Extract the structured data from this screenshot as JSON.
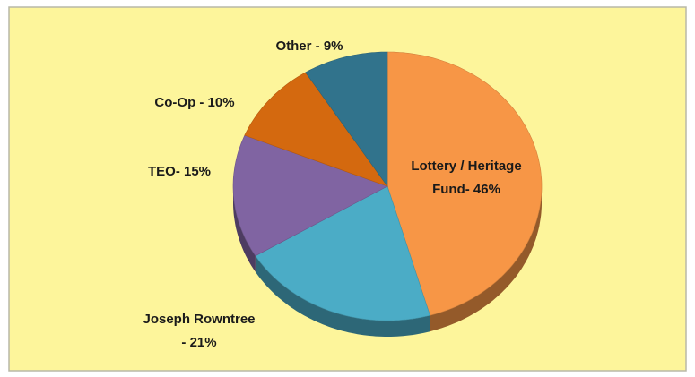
{
  "chart_data": {
    "type": "pie",
    "values": [
      46,
      21,
      15,
      10,
      9
    ],
    "value_labels": [
      [
        "Lottery / Heritage",
        "Fund- 46%"
      ],
      [
        "Joseph Rowntree",
        "- 21%"
      ],
      [
        "TEO- 15%"
      ],
      [
        "Co-Op - 10%"
      ],
      [
        "Other - 9%"
      ]
    ],
    "colors": [
      "#f79646",
      "#4bacc6",
      "#8064a2",
      "#d4690f",
      "#31738c"
    ]
  }
}
